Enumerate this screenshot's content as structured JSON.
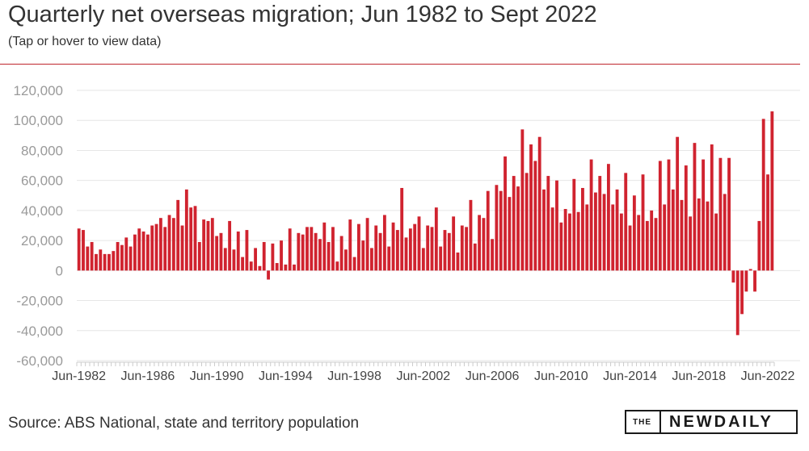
{
  "header": {
    "title": "Quarterly net overseas migration; Jun 1982 to Sept 2022",
    "subtitle": "(Tap or hover to view data)"
  },
  "footer": {
    "source": "Source: ABS National, state and territory population",
    "logo_the": "THE",
    "logo_name": "NEWDAILY"
  },
  "colors": {
    "bar": "#d0232f",
    "rule": "#c0272d",
    "grid": "#e6e6e6"
  },
  "chart_data": {
    "type": "bar",
    "ylim": [
      -60000,
      120000
    ],
    "y_ticks": [
      120000,
      100000,
      80000,
      60000,
      40000,
      20000,
      0,
      -20000,
      -40000,
      -60000
    ],
    "y_tick_labels": [
      "120,000",
      "100,000",
      "80,000",
      "60,000",
      "40,000",
      "20,000",
      "0",
      "-20,000",
      "-40,000",
      "-60,000"
    ],
    "x_tick_labels": [
      {
        "index": 0,
        "label": "Jun-1982"
      },
      {
        "index": 16,
        "label": "Jun-1986"
      },
      {
        "index": 32,
        "label": "Jun-1990"
      },
      {
        "index": 48,
        "label": "Jun-1994"
      },
      {
        "index": 64,
        "label": "Jun-1998"
      },
      {
        "index": 80,
        "label": "Jun-2002"
      },
      {
        "index": 96,
        "label": "Jun-2006"
      },
      {
        "index": 112,
        "label": "Jun-2010"
      },
      {
        "index": 128,
        "label": "Jun-2014"
      },
      {
        "index": 144,
        "label": "Jun-2018"
      },
      {
        "index": 160,
        "label": "Jun-2022"
      }
    ],
    "first_period": "Jun-1982",
    "last_period": "Sept-2022",
    "values": [
      28000,
      27000,
      16000,
      19000,
      11000,
      14000,
      11000,
      11000,
      13000,
      19000,
      17000,
      22000,
      16000,
      24000,
      28000,
      26000,
      24000,
      30000,
      31000,
      35000,
      29000,
      37000,
      35000,
      47000,
      30000,
      54000,
      42000,
      43000,
      19000,
      34000,
      33000,
      35000,
      23000,
      25000,
      15000,
      33000,
      14000,
      26000,
      9000,
      27000,
      6000,
      15000,
      3000,
      19000,
      -6000,
      18000,
      5000,
      20000,
      4000,
      28000,
      4000,
      25000,
      24000,
      29000,
      29000,
      25000,
      21000,
      32000,
      19000,
      29000,
      6000,
      23000,
      14000,
      34000,
      9000,
      31000,
      20000,
      35000,
      15000,
      30000,
      25000,
      37000,
      16000,
      32000,
      27000,
      55000,
      22000,
      28000,
      31000,
      36000,
      15000,
      30000,
      29000,
      42000,
      16000,
      27000,
      25000,
      36000,
      12000,
      30000,
      29000,
      47000,
      18000,
      37000,
      35000,
      53000,
      21000,
      57000,
      53000,
      76000,
      49000,
      63000,
      56000,
      94000,
      65000,
      84000,
      73000,
      89000,
      54000,
      63000,
      42000,
      60000,
      32000,
      41000,
      38000,
      61000,
      39000,
      55000,
      44000,
      74000,
      52000,
      63000,
      51000,
      71000,
      44000,
      54000,
      38000,
      65000,
      30000,
      50000,
      37000,
      64000,
      33000,
      40000,
      35000,
      73000,
      44000,
      74000,
      54000,
      89000,
      47000,
      70000,
      36000,
      85000,
      48000,
      74000,
      46000,
      84000,
      38000,
      75000,
      51000,
      75000,
      -8000,
      -43000,
      -29000,
      -14000,
      1000,
      -14000,
      33000,
      101000,
      64000,
      106000
    ]
  }
}
